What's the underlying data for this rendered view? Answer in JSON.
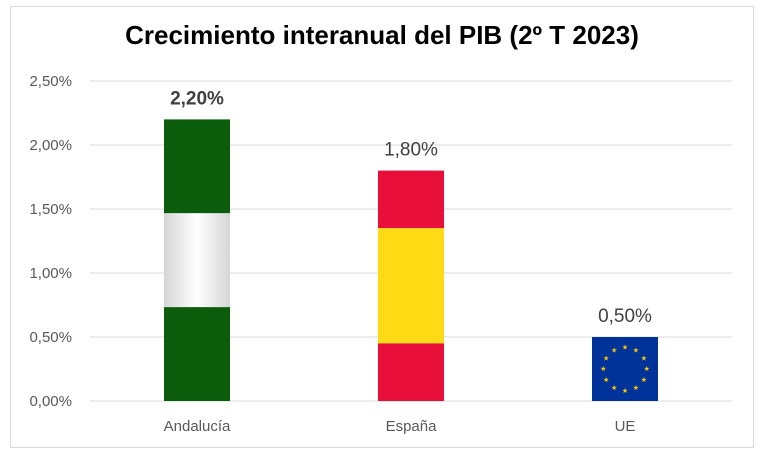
{
  "chart_data": {
    "type": "bar",
    "title": "Crecimiento interanual del PIB (2º T 2023)",
    "categories": [
      "Andalucía",
      "España",
      "UE"
    ],
    "values": [
      2.2,
      1.8,
      0.5
    ],
    "data_labels": [
      "2,20%",
      "1,80%",
      "0,50%"
    ],
    "y_ticks": [
      "0,00%",
      "0,50%",
      "1,00%",
      "1,50%",
      "2,00%",
      "2,50%"
    ],
    "ylim": [
      0,
      2.5
    ],
    "grid": true,
    "legend": "none",
    "bar_styles": [
      {
        "style": "flag-andalucia",
        "colors": [
          "#0b5c0b",
          "#ffffff",
          "#0b5c0b"
        ]
      },
      {
        "style": "flag-espana",
        "colors": [
          "#e8103a",
          "#fcdb14",
          "#e8103a"
        ]
      },
      {
        "style": "flag-ue",
        "colors": [
          "#003399",
          "#ffcc00"
        ]
      }
    ]
  }
}
